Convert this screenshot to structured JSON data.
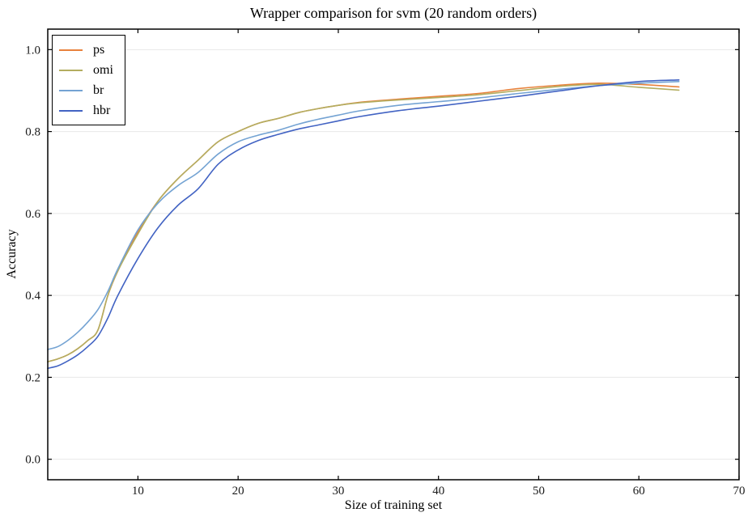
{
  "chart_data": {
    "type": "line",
    "title": "Wrapper comparison for svm (20 random orders)",
    "xlabel": "Size of training set",
    "ylabel": "Accuracy",
    "xlim": [
      1,
      70
    ],
    "ylim": [
      -0.05,
      1.05
    ],
    "x_ticks": [
      10,
      20,
      30,
      40,
      50,
      60,
      70
    ],
    "y_ticks": [
      0.0,
      0.2,
      0.4,
      0.6,
      0.8,
      1.0
    ],
    "grid": "horizontal-only",
    "grid_color": "#e8e8e8",
    "axis_color": "#000000",
    "legend_position": "upper-left",
    "x": [
      1,
      2,
      3,
      4,
      5,
      6,
      7,
      8,
      10,
      12,
      14,
      16,
      18,
      20,
      22,
      24,
      26,
      28,
      30,
      32,
      36,
      40,
      44,
      48,
      52,
      56,
      60,
      64
    ],
    "series": [
      {
        "name": "ps",
        "color": "#e8823c",
        "values": [
          0.238,
          0.245,
          0.255,
          0.27,
          0.29,
          0.315,
          0.4,
          0.46,
          0.555,
          0.63,
          0.685,
          0.73,
          0.775,
          0.8,
          0.82,
          0.832,
          0.846,
          0.856,
          0.864,
          0.871,
          0.879,
          0.886,
          0.893,
          0.905,
          0.913,
          0.918,
          0.915,
          0.909
        ]
      },
      {
        "name": "omi",
        "color": "#b3ad60",
        "values": [
          0.238,
          0.245,
          0.255,
          0.27,
          0.29,
          0.315,
          0.4,
          0.46,
          0.55,
          0.63,
          0.685,
          0.73,
          0.775,
          0.8,
          0.82,
          0.832,
          0.846,
          0.856,
          0.864,
          0.87,
          0.877,
          0.883,
          0.89,
          0.9,
          0.91,
          0.915,
          0.908,
          0.901
        ]
      },
      {
        "name": "br",
        "color": "#74a3d3",
        "values": [
          0.268,
          0.275,
          0.29,
          0.31,
          0.335,
          0.365,
          0.41,
          0.465,
          0.56,
          0.625,
          0.668,
          0.7,
          0.745,
          0.775,
          0.791,
          0.803,
          0.818,
          0.83,
          0.84,
          0.85,
          0.864,
          0.873,
          0.882,
          0.893,
          0.903,
          0.912,
          0.918,
          0.922
        ]
      },
      {
        "name": "hbr",
        "color": "#4263c3",
        "values": [
          0.222,
          0.228,
          0.24,
          0.255,
          0.275,
          0.3,
          0.345,
          0.4,
          0.49,
          0.565,
          0.62,
          0.66,
          0.72,
          0.755,
          0.778,
          0.793,
          0.806,
          0.816,
          0.826,
          0.836,
          0.851,
          0.862,
          0.874,
          0.886,
          0.899,
          0.912,
          0.922,
          0.926
        ]
      }
    ]
  }
}
